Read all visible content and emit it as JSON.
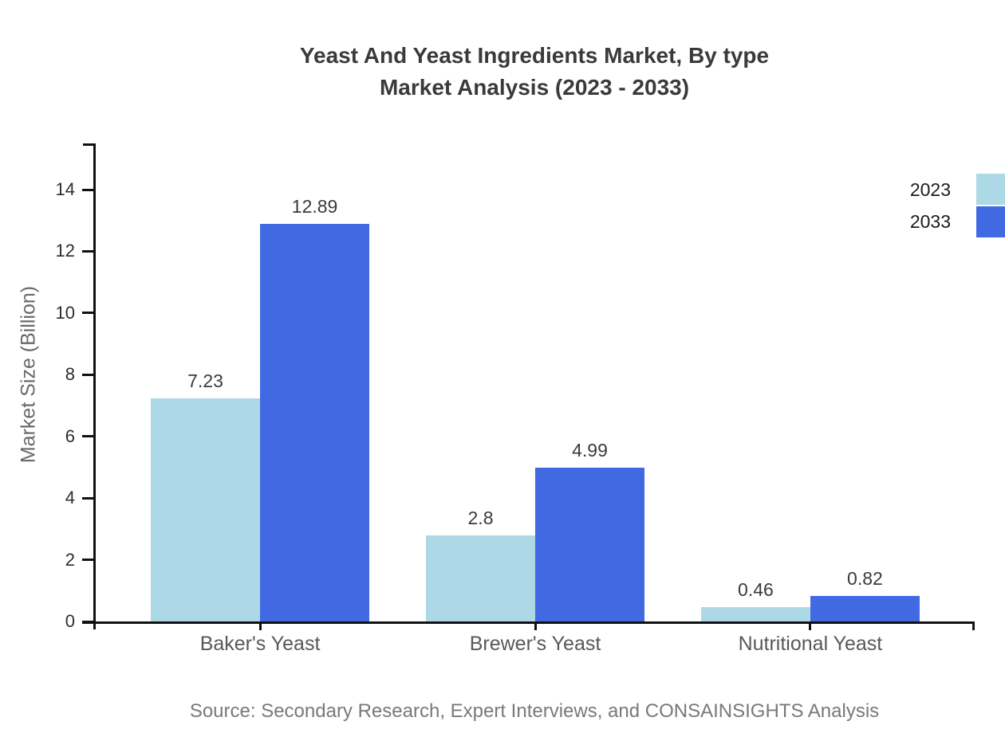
{
  "title": {
    "line1": "Yeast And Yeast Ingredients Market, By type",
    "line2": "Market Analysis (2023 - 2033)"
  },
  "source": "Source: Secondary Research, Expert Interviews, and CONSAINSIGHTS Analysis",
  "legend": [
    {
      "label": "2023",
      "color": "#ADD8E6"
    },
    {
      "label": "2033",
      "color": "#4169E1"
    }
  ],
  "chart_data": {
    "type": "bar",
    "title": "Yeast And Yeast Ingredients Market, By type Market Analysis (2023 - 2033)",
    "categories": [
      "Baker's Yeast",
      "Brewer's Yeast",
      "Nutritional Yeast"
    ],
    "series": [
      {
        "name": "2023",
        "color": "#ADD8E6",
        "values": [
          7.23,
          2.8,
          0.46
        ],
        "labels": [
          "7.23",
          "2.8",
          "0.46"
        ]
      },
      {
        "name": "2033",
        "color": "#4169E1",
        "values": [
          12.89,
          4.99,
          0.82
        ],
        "labels": [
          "12.89",
          "4.99",
          "0.82"
        ]
      }
    ],
    "xlabel": "",
    "ylabel": "Market Size (Billion)",
    "yticks": [
      0,
      2,
      4,
      6,
      8,
      10,
      12,
      14
    ],
    "ylim": [
      0,
      15.5
    ],
    "grid": false,
    "legend_position": "top-right",
    "value_labels": true
  },
  "colors": {
    "axis": "#111111",
    "title_text": "#3a3a3a",
    "tick_text": "#2d2d2d",
    "category_text": "#55595d",
    "source_text": "#77797c"
  }
}
